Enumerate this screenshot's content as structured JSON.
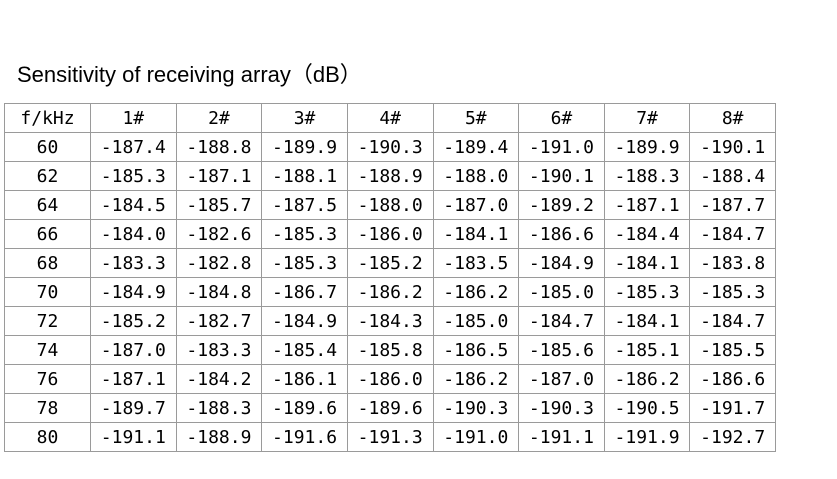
{
  "title": "Sensitivity of receiving array（dB）",
  "table": {
    "columns": [
      "f/kHz",
      "1#",
      "2#",
      "3#",
      "4#",
      "5#",
      "6#",
      "7#",
      "8#"
    ],
    "rows": [
      [
        "60",
        "-187.4",
        "-188.8",
        "-189.9",
        "-190.3",
        "-189.4",
        "-191.0",
        "-189.9",
        "-190.1"
      ],
      [
        "62",
        "-185.3",
        "-187.1",
        "-188.1",
        "-188.9",
        "-188.0",
        "-190.1",
        "-188.3",
        "-188.4"
      ],
      [
        "64",
        "-184.5",
        "-185.7",
        "-187.5",
        "-188.0",
        "-187.0",
        "-189.2",
        "-187.1",
        "-187.7"
      ],
      [
        "66",
        "-184.0",
        "-182.6",
        "-185.3",
        "-186.0",
        "-184.1",
        "-186.6",
        "-184.4",
        "-184.7"
      ],
      [
        "68",
        "-183.3",
        "-182.8",
        "-185.3",
        "-185.2",
        "-183.5",
        "-184.9",
        "-184.1",
        "-183.8"
      ],
      [
        "70",
        "-184.9",
        "-184.8",
        "-186.7",
        "-186.2",
        "-186.2",
        "-185.0",
        "-185.3",
        "-185.3"
      ],
      [
        "72",
        "-185.2",
        "-182.7",
        "-184.9",
        "-184.3",
        "-185.0",
        "-184.7",
        "-184.1",
        "-184.7"
      ],
      [
        "74",
        "-187.0",
        "-183.3",
        "-185.4",
        "-185.8",
        "-186.5",
        "-185.6",
        "-185.1",
        "-185.5"
      ],
      [
        "76",
        "-187.1",
        "-184.2",
        "-186.1",
        "-186.0",
        "-186.2",
        "-187.0",
        "-186.2",
        "-186.6"
      ],
      [
        "78",
        "-189.7",
        "-188.3",
        "-189.6",
        "-189.6",
        "-190.3",
        "-190.3",
        "-190.5",
        "-191.7"
      ],
      [
        "80",
        "-191.1",
        "-188.9",
        "-191.6",
        "-191.3",
        "-191.0",
        "-191.1",
        "-191.9",
        "-192.7"
      ]
    ]
  }
}
